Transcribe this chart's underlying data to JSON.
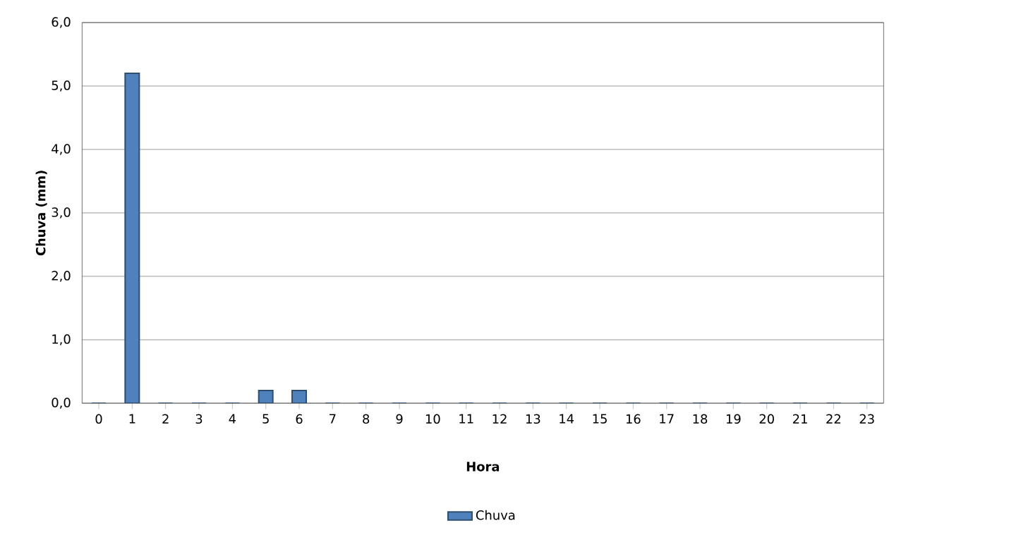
{
  "chart_data": {
    "type": "bar",
    "xlabel": "Hora",
    "ylabel": "Chuva (mm)",
    "categories": [
      "0",
      "1",
      "2",
      "3",
      "4",
      "5",
      "6",
      "7",
      "8",
      "9",
      "10",
      "11",
      "12",
      "13",
      "14",
      "15",
      "16",
      "17",
      "18",
      "19",
      "20",
      "21",
      "22",
      "23"
    ],
    "series": [
      {
        "name": "Chuva",
        "color": "#4f81bd",
        "values": [
          0,
          5.2,
          0,
          0,
          0,
          0.2,
          0.2,
          0,
          0,
          0,
          0,
          0,
          0,
          0,
          0,
          0,
          0,
          0,
          0,
          0,
          0,
          0,
          0,
          0
        ]
      }
    ],
    "ylim": [
      0,
      6
    ],
    "yticks": [
      {
        "value": 0,
        "label": "0,0"
      },
      {
        "value": 1,
        "label": "1,0"
      },
      {
        "value": 2,
        "label": "2,0"
      },
      {
        "value": 3,
        "label": "3,0"
      },
      {
        "value": 4,
        "label": "4,0"
      },
      {
        "value": 5,
        "label": "5,0"
      },
      {
        "value": 6,
        "label": "6,0"
      }
    ],
    "grid": "y",
    "legend": "bottom"
  }
}
